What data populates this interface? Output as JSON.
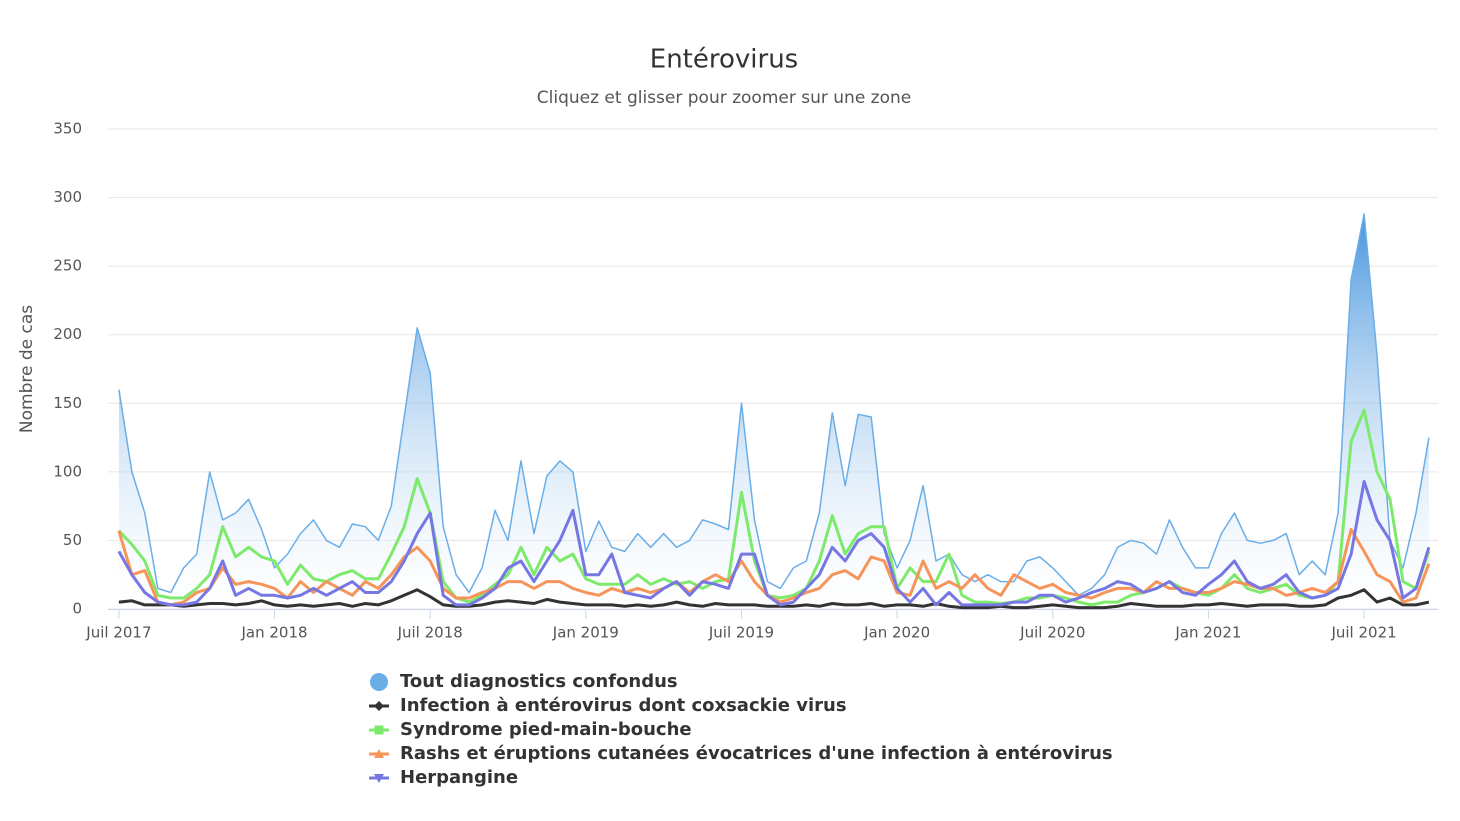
{
  "chart_data": {
    "type": "line",
    "title": "Entérovirus",
    "subtitle": "Cliquez et glisser pour zoomer sur une zone",
    "y_label": "Nombre de cas",
    "xlim": [
      -0.42,
      50.85
    ],
    "xticks": [
      {
        "value": 0,
        "label": "Juil 2017"
      },
      {
        "value": 6,
        "label": "Jan 2018"
      },
      {
        "value": 12,
        "label": "Juil 2018"
      },
      {
        "value": 18,
        "label": "Jan 2019"
      },
      {
        "value": 24,
        "label": "Juil 2019"
      },
      {
        "value": 30,
        "label": "Jan 2020"
      },
      {
        "value": 36,
        "label": "Juil 2020"
      },
      {
        "value": 42,
        "label": "Jan 2021"
      },
      {
        "value": 48,
        "label": "Juil 2021"
      }
    ],
    "ylim": [
      0,
      350
    ],
    "yticks": [
      0,
      50,
      100,
      150,
      200,
      250,
      300,
      350
    ],
    "grid": true,
    "legend": "bottom",
    "x": [
      0,
      0.5,
      1,
      1.5,
      2,
      2.5,
      3,
      3.5,
      4,
      4.5,
      5,
      5.5,
      6,
      6.5,
      7,
      7.5,
      8,
      8.5,
      9,
      9.5,
      10,
      10.5,
      11,
      11.5,
      12,
      12.5,
      13,
      13.5,
      14,
      14.5,
      15,
      15.5,
      16,
      16.5,
      17,
      17.5,
      18,
      18.5,
      19,
      19.5,
      20,
      20.5,
      21,
      21.5,
      22,
      22.5,
      23,
      23.5,
      24,
      24.5,
      25,
      25.5,
      26,
      26.5,
      27,
      27.5,
      28,
      28.5,
      29,
      29.5,
      30,
      30.5,
      31,
      31.5,
      32,
      32.5,
      33,
      33.5,
      34,
      34.5,
      35,
      35.5,
      36,
      36.5,
      37,
      37.5,
      38,
      38.5,
      39,
      39.5,
      40,
      40.5,
      41,
      41.5,
      42,
      42.5,
      43,
      43.5,
      44,
      44.5,
      45,
      45.5,
      46,
      46.5,
      47,
      47.5,
      48,
      48.5,
      49,
      49.5,
      50,
      50.5
    ],
    "series": [
      {
        "name": "Tout diagnostics confondus",
        "color": "#6aaee8",
        "area": true,
        "marker": "circle",
        "values": [
          160,
          100,
          70,
          15,
          12,
          30,
          40,
          100,
          65,
          70,
          80,
          58,
          30,
          40,
          55,
          65,
          50,
          45,
          62,
          60,
          50,
          75,
          140,
          205,
          172,
          60,
          25,
          12,
          30,
          72,
          50,
          108,
          55,
          97,
          108,
          100,
          42,
          64,
          45,
          42,
          55,
          45,
          55,
          45,
          50,
          65,
          62,
          58,
          150,
          65,
          20,
          15,
          30,
          35,
          70,
          143,
          90,
          142,
          140,
          55,
          30,
          50,
          90,
          35,
          40,
          25,
          20,
          25,
          20,
          20,
          35,
          38,
          30,
          20,
          10,
          15,
          25,
          45,
          50,
          48,
          40,
          65,
          45,
          30,
          30,
          55,
          70,
          50,
          48,
          50,
          55,
          25,
          35,
          25,
          70,
          240,
          288,
          185,
          50,
          30,
          70,
          125
        ]
      },
      {
        "name": "Infection à entérovirus dont coxsackie virus",
        "color": "#333333",
        "marker": "diamond",
        "values": [
          5,
          6,
          3,
          3,
          3,
          2,
          3,
          4,
          4,
          3,
          4,
          6,
          3,
          2,
          3,
          2,
          3,
          4,
          2,
          4,
          3,
          6,
          10,
          14,
          9,
          3,
          2,
          2,
          3,
          5,
          6,
          5,
          4,
          7,
          5,
          4,
          3,
          3,
          3,
          2,
          3,
          2,
          3,
          5,
          3,
          2,
          4,
          3,
          3,
          3,
          2,
          2,
          2,
          3,
          2,
          4,
          3,
          3,
          4,
          2,
          3,
          3,
          2,
          4,
          2,
          1,
          1,
          1,
          2,
          1,
          1,
          2,
          3,
          2,
          1,
          1,
          1,
          2,
          4,
          3,
          2,
          2,
          2,
          3,
          3,
          4,
          3,
          2,
          3,
          3,
          3,
          2,
          2,
          3,
          8,
          10,
          14,
          5,
          8,
          3,
          3,
          5
        ]
      },
      {
        "name": "Syndrome pied-main-bouche",
        "color": "#7eea6c",
        "marker": "square",
        "values": [
          57,
          47,
          35,
          10,
          8,
          8,
          15,
          25,
          60,
          38,
          45,
          38,
          35,
          18,
          32,
          22,
          20,
          25,
          28,
          22,
          22,
          40,
          60,
          95,
          70,
          20,
          8,
          5,
          10,
          18,
          25,
          45,
          25,
          45,
          35,
          40,
          22,
          18,
          18,
          18,
          25,
          18,
          22,
          18,
          20,
          15,
          20,
          22,
          85,
          35,
          10,
          8,
          10,
          15,
          35,
          68,
          40,
          55,
          60,
          60,
          15,
          30,
          20,
          20,
          40,
          10,
          5,
          5,
          4,
          5,
          8,
          8,
          10,
          8,
          5,
          3,
          5,
          5,
          10,
          12,
          15,
          20,
          15,
          12,
          10,
          15,
          25,
          15,
          12,
          15,
          18,
          10,
          8,
          10,
          20,
          122,
          145,
          100,
          80,
          20,
          15,
          42
        ]
      },
      {
        "name": "Rashs et éruptions cutanées évocatrices d'une infection à entérovirus",
        "color": "#f7945a",
        "marker": "triangle",
        "values": [
          57,
          25,
          28,
          5,
          3,
          5,
          12,
          15,
          30,
          18,
          20,
          18,
          15,
          8,
          20,
          12,
          20,
          15,
          10,
          20,
          15,
          25,
          38,
          45,
          35,
          15,
          8,
          8,
          12,
          15,
          20,
          20,
          15,
          20,
          20,
          15,
          12,
          10,
          15,
          12,
          15,
          12,
          15,
          20,
          12,
          20,
          25,
          20,
          35,
          20,
          10,
          5,
          8,
          12,
          15,
          25,
          28,
          22,
          38,
          35,
          12,
          10,
          35,
          15,
          20,
          15,
          25,
          15,
          10,
          25,
          20,
          15,
          18,
          12,
          10,
          8,
          12,
          15,
          15,
          12,
          20,
          15,
          15,
          12,
          12,
          15,
          20,
          18,
          15,
          15,
          10,
          12,
          15,
          12,
          20,
          58,
          42,
          25,
          20,
          5,
          8,
          33
        ]
      },
      {
        "name": "Herpangine",
        "color": "#7677e3",
        "marker": "triangle-down",
        "values": [
          42,
          25,
          12,
          5,
          3,
          3,
          5,
          15,
          35,
          10,
          15,
          10,
          10,
          8,
          10,
          15,
          10,
          15,
          20,
          12,
          12,
          20,
          35,
          55,
          70,
          10,
          3,
          3,
          8,
          15,
          30,
          35,
          20,
          35,
          50,
          72,
          25,
          25,
          40,
          12,
          10,
          8,
          15,
          20,
          10,
          20,
          18,
          15,
          40,
          40,
          10,
          3,
          5,
          15,
          25,
          45,
          35,
          50,
          55,
          45,
          15,
          5,
          15,
          3,
          12,
          3,
          3,
          3,
          3,
          5,
          5,
          10,
          10,
          5,
          8,
          12,
          15,
          20,
          18,
          12,
          15,
          20,
          12,
          10,
          18,
          25,
          35,
          20,
          15,
          18,
          25,
          12,
          8,
          10,
          15,
          40,
          93,
          65,
          50,
          8,
          15,
          45
        ]
      }
    ]
  }
}
